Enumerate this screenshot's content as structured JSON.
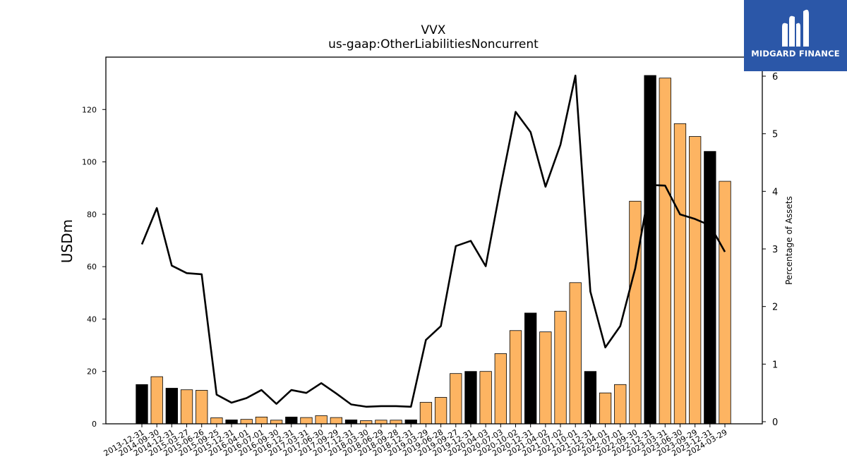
{
  "chart_data": {
    "type": "bar",
    "title": "VVX",
    "subtitle": "us-gaap:OtherLiabilitiesNoncurrent",
    "ylabel": "USDm",
    "y2label": "Percentage of Assets",
    "ylim": [
      0,
      140
    ],
    "y2lim": [
      0,
      6.2
    ],
    "yticks": [
      0,
      20,
      40,
      60,
      80,
      100,
      120
    ],
    "y2ticks": [
      0,
      1,
      2,
      3,
      4,
      5,
      6
    ],
    "categories": [
      "2013-12-31",
      "2014-09-30",
      "2014-12-31",
      "2015-03-27",
      "2015-06-26",
      "2015-09-25",
      "2015-12-31",
      "2016-04-01",
      "2016-07-01",
      "2016-09-30",
      "2016-12-31",
      "2017-03-31",
      "2017-06-30",
      "2017-09-29",
      "2017-12-31",
      "2018-03-30",
      "2018-06-29",
      "2018-09-28",
      "2018-12-31",
      "2019-03-29",
      "2019-06-28",
      "2019-09-27",
      "2019-12-31",
      "2020-04-03",
      "2020-07-03",
      "2020-10-02",
      "2020-12-31",
      "2021-04-02",
      "2021-07-02",
      "2021-10-01",
      "2021-12-31",
      "2022-04-01",
      "2022-07-01",
      "2022-09-30",
      "2022-12-31",
      "2023-03-31",
      "2023-06-30",
      "2023-09-29",
      "2023-12-31",
      "2024-03-29"
    ],
    "series": [
      {
        "kind": "bar",
        "values": [
          15,
          18,
          13.6,
          13,
          12.8,
          2.3,
          1.5,
          1.7,
          2.6,
          1.4,
          2.6,
          2.4,
          3.1,
          2.4,
          1.5,
          1.2,
          1.4,
          1.4,
          1.5,
          8.2,
          10.1,
          19.2,
          20,
          20,
          26.8,
          35.6,
          42.3,
          35.1,
          43,
          53.9,
          20,
          11.8,
          15,
          85,
          133,
          132,
          114.6,
          109.7,
          104,
          92.6
        ],
        "colors": [
          "#000000",
          "#fdb462",
          "#000000",
          "#fdb462",
          "#fdb462",
          "#fdb462",
          "#000000",
          "#fdb462",
          "#fdb462",
          "#fdb462",
          "#000000",
          "#fdb462",
          "#fdb462",
          "#fdb462",
          "#000000",
          "#fdb462",
          "#fdb462",
          "#fdb462",
          "#000000",
          "#fdb462",
          "#fdb462",
          "#fdb462",
          "#000000",
          "#fdb462",
          "#fdb462",
          "#fdb462",
          "#000000",
          "#fdb462",
          "#fdb462",
          "#fdb462",
          "#000000",
          "#fdb462",
          "#fdb462",
          "#fdb462",
          "#000000",
          "#fdb462",
          "#fdb462",
          "#fdb462",
          "#000000",
          "#fdb462"
        ]
      },
      {
        "kind": "line",
        "axis": "right",
        "color": "#000000",
        "values": [
          3.08,
          3.71,
          2.71,
          2.58,
          2.56,
          0.47,
          0.33,
          0.41,
          0.55,
          0.31,
          0.55,
          0.5,
          0.67,
          0.49,
          0.3,
          0.26,
          0.27,
          0.27,
          0.26,
          1.42,
          1.66,
          3.05,
          3.14,
          2.7,
          4.08,
          5.38,
          5.03,
          4.08,
          4.81,
          6.01,
          2.26,
          1.29,
          1.66,
          2.66,
          4.11,
          4.1,
          3.6,
          3.52,
          3.41,
          2.95
        ]
      }
    ]
  },
  "logo": {
    "text": "MIDGARD FINANCE",
    "bg": "#2b57a8"
  }
}
